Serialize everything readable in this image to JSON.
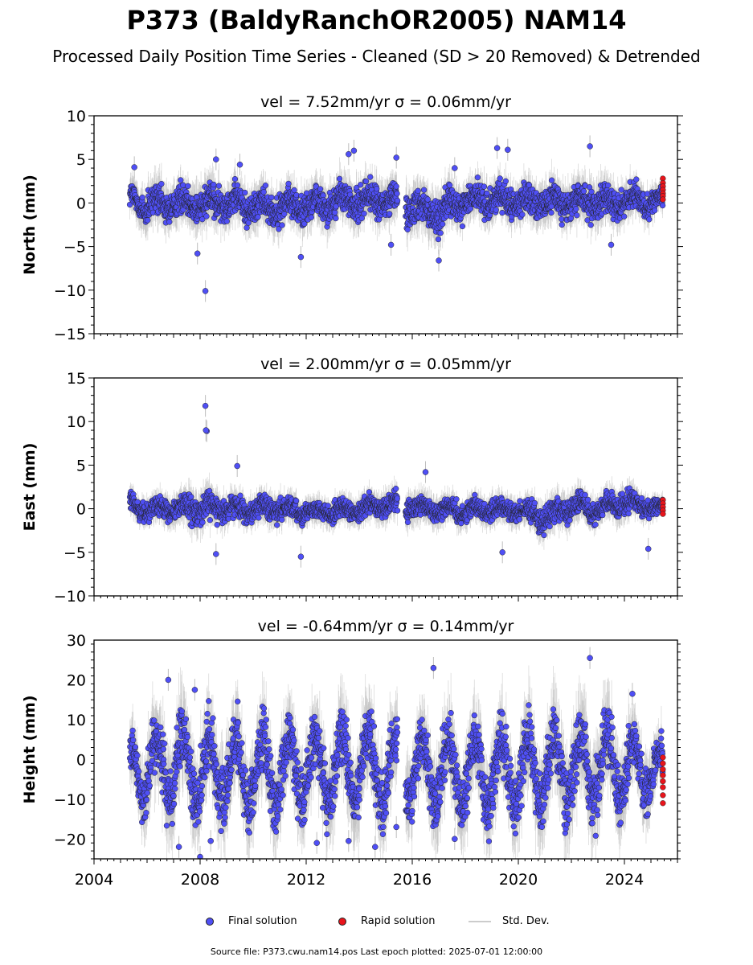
{
  "figure": {
    "title": "P373 (BaldyRanchOR2005) NAM14",
    "subtitle": "Processed Daily Position Time Series - Cleaned (SD > 20 Removed) & Detrended",
    "footer": "Source file: P373.cwu.nam14.pos  Last epoch plotted: 2025-07-01 12:00:00"
  },
  "legend": {
    "final_label": "Final solution",
    "rapid_label": "Rapid solution",
    "stddev_label": "Std. Dev."
  },
  "colors": {
    "final": "#4f4ff5",
    "rapid": "#e8141b",
    "stddev": "#bdbdbd",
    "marker_edge": "#222222"
  },
  "chart_data": [
    {
      "type": "scatter",
      "panel": "north",
      "title": "vel = 7.52mm/yr   σ = 0.06mm/yr",
      "ylabel": "North (mm)",
      "xlim": [
        2004.0,
        2026.0
      ],
      "ylim": [
        -15,
        10
      ],
      "yticks": [
        -15,
        -10,
        -5,
        0,
        5,
        10
      ],
      "xticks": [
        2004,
        2008,
        2012,
        2016,
        2020,
        2024
      ],
      "show_xtick_labels": false,
      "grid": false,
      "data_range": [
        2005.35,
        2025.45
      ],
      "gap": [
        2015.45,
        2015.75
      ],
      "rapid_x": 2025.45,
      "rapid_y": [
        2.8,
        2.3,
        1.9,
        1.5,
        1.1,
        0.8,
        0.4
      ],
      "series": [
        {
          "kind": "final",
          "envelope_x": [
            2005.4,
            2006.0,
            2007.0,
            2008.0,
            2009.0,
            2010.0,
            2011.0,
            2012.0,
            2013.0,
            2014.0,
            2015.0,
            2015.4,
            2015.8,
            2017.0,
            2018.0,
            2019.0,
            2020.0,
            2021.0,
            2022.0,
            2023.0,
            2024.0,
            2025.4
          ],
          "envelope_upper": [
            3.5,
            3.5,
            3.5,
            4.0,
            3.8,
            3.2,
            3.2,
            3.2,
            3.8,
            4.0,
            4.0,
            4.0,
            3.5,
            3.0,
            3.5,
            4.0,
            3.5,
            3.5,
            3.8,
            3.8,
            3.5,
            2.5
          ],
          "envelope_lower": [
            -2.5,
            -4.5,
            -3.5,
            -4.0,
            -3.5,
            -4.0,
            -4.0,
            -4.0,
            -3.5,
            -3.5,
            -3.5,
            -3.5,
            -4.0,
            -5.5,
            -3.0,
            -3.0,
            -3.0,
            -3.5,
            -3.5,
            -4.0,
            -3.0,
            -2.0
          ],
          "outliers": [
            [
              2005.52,
              4.1
            ],
            [
              2007.9,
              -5.8
            ],
            [
              2008.2,
              -10.1
            ],
            [
              2008.6,
              5.0
            ],
            [
              2009.5,
              4.4
            ],
            [
              2011.8,
              -6.2
            ],
            [
              2013.6,
              5.6
            ],
            [
              2013.8,
              6.0
            ],
            [
              2015.2,
              -4.8
            ],
            [
              2015.4,
              5.2
            ],
            [
              2017.6,
              4.0
            ],
            [
              2017.0,
              -6.6
            ],
            [
              2019.2,
              6.3
            ],
            [
              2019.6,
              6.1
            ],
            [
              2022.7,
              6.5
            ],
            [
              2023.5,
              -4.8
            ]
          ]
        }
      ]
    },
    {
      "type": "scatter",
      "panel": "east",
      "title": "vel = 2.00mm/yr   σ = 0.05mm/yr",
      "ylabel": "East (mm)",
      "xlim": [
        2004.0,
        2026.0
      ],
      "ylim": [
        -10,
        15
      ],
      "yticks": [
        -10,
        -5,
        0,
        5,
        10,
        15
      ],
      "xticks": [
        2004,
        2008,
        2012,
        2016,
        2020,
        2024
      ],
      "show_xtick_labels": false,
      "grid": false,
      "data_range": [
        2005.35,
        2025.45
      ],
      "gap": [
        2015.45,
        2015.75
      ],
      "rapid_x": 2025.45,
      "rapid_y": [
        1.0,
        0.6,
        0.2,
        -0.2,
        -0.6
      ],
      "series": [
        {
          "kind": "final",
          "envelope_x": [
            2005.4,
            2006.0,
            2007.0,
            2008.0,
            2009.0,
            2010.0,
            2011.0,
            2012.0,
            2013.0,
            2014.0,
            2015.0,
            2015.4,
            2015.8,
            2017.0,
            2018.0,
            2019.0,
            2020.0,
            2021.0,
            2022.0,
            2023.0,
            2024.0,
            2025.4
          ],
          "envelope_upper": [
            2.5,
            2.0,
            2.5,
            3.5,
            2.5,
            2.5,
            2.5,
            2.0,
            2.0,
            2.0,
            3.0,
            3.0,
            3.0,
            2.5,
            2.0,
            2.5,
            2.0,
            2.0,
            3.0,
            2.5,
            3.5,
            1.5
          ],
          "envelope_lower": [
            -1.5,
            -2.5,
            -2.5,
            -3.5,
            -2.5,
            -2.5,
            -2.5,
            -2.5,
            -2.5,
            -2.5,
            -2.0,
            -2.0,
            -2.5,
            -2.5,
            -2.5,
            -2.5,
            -2.5,
            -4.0,
            -2.5,
            -2.5,
            -2.0,
            -1.5
          ],
          "outliers": [
            [
              2008.2,
              11.8
            ],
            [
              2008.25,
              8.9
            ],
            [
              2008.22,
              9.0
            ],
            [
              2009.4,
              4.9
            ],
            [
              2008.6,
              -5.2
            ],
            [
              2011.8,
              -5.5
            ],
            [
              2016.5,
              4.2
            ],
            [
              2024.9,
              -4.6
            ],
            [
              2019.4,
              -5.0
            ]
          ]
        }
      ]
    },
    {
      "type": "scatter",
      "panel": "height",
      "title": "vel = -0.64mm/yr   σ = 0.14mm/yr",
      "ylabel": "Height (mm)",
      "xlim": [
        2004.0,
        2026.0
      ],
      "ylim": [
        -25,
        30
      ],
      "yticks": [
        -20,
        -10,
        0,
        10,
        20,
        30
      ],
      "xticks": [
        2004,
        2008,
        2012,
        2016,
        2020,
        2024
      ],
      "show_xtick_labels": true,
      "grid": false,
      "data_range": [
        2005.35,
        2025.45
      ],
      "gap": [
        2015.45,
        2015.75
      ],
      "rapid_x": 2025.45,
      "rapid_y": [
        0.5,
        -1.0,
        -2.5,
        -4.0,
        -5.5,
        -7.0,
        -9.0,
        -11.0
      ],
      "series": [
        {
          "kind": "final",
          "envelope_x": [
            2005.4,
            2006.0,
            2007.0,
            2008.0,
            2009.0,
            2010.0,
            2011.0,
            2012.0,
            2013.0,
            2014.0,
            2015.0,
            2015.4,
            2015.8,
            2017.0,
            2018.0,
            2019.0,
            2020.0,
            2021.0,
            2022.0,
            2023.0,
            2024.0,
            2025.4
          ],
          "envelope_upper": [
            8,
            12,
            14,
            12,
            13,
            12,
            12,
            12,
            12,
            14,
            12,
            12,
            10,
            12,
            11,
            12,
            12,
            14,
            14,
            15,
            12,
            6
          ],
          "envelope_lower": [
            -12,
            -16,
            -18,
            -18,
            -18,
            -18,
            -18,
            -16,
            -18,
            -18,
            -18,
            -18,
            -16,
            -18,
            -18,
            -18,
            -18,
            -18,
            -18,
            -18,
            -16,
            -12
          ],
          "outliers": [
            [
              2006.8,
              20.0
            ],
            [
              2007.8,
              17.5
            ],
            [
              2016.8,
              23.0
            ],
            [
              2022.7,
              25.5
            ],
            [
              2024.3,
              16.5
            ],
            [
              2008.0,
              -24.5
            ],
            [
              2007.2,
              -22.0
            ],
            [
              2014.6,
              -22.0
            ],
            [
              2012.4,
              -21.0
            ],
            [
              2008.4,
              -20.5
            ],
            [
              2013.6,
              -20.5
            ],
            [
              2015.4,
              -17.0
            ],
            [
              2017.6,
              -20.0
            ]
          ]
        }
      ]
    }
  ]
}
